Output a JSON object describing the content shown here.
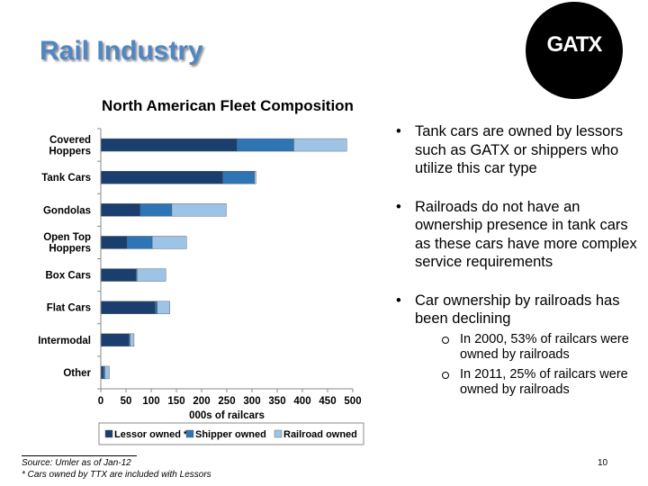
{
  "slide": {
    "title": "Rail Industry",
    "logo_text": "GATX",
    "page_number": "10"
  },
  "chart_data": {
    "type": "bar",
    "orientation": "horizontal",
    "stacked": true,
    "title": "North American Fleet Composition",
    "xlabel": "000s of railcars",
    "ylabel": "",
    "xlim": [
      0,
      500
    ],
    "xticks": [
      "0",
      "50",
      "100",
      "150",
      "200",
      "250",
      "300",
      "350",
      "400",
      "450",
      "500"
    ],
    "categories": [
      "Covered Hoppers",
      "Tank Cars",
      "Gondolas",
      "Open Top Hoppers",
      "Box Cars",
      "Flat Cars",
      "Intermodal",
      "Other"
    ],
    "category_lines": [
      [
        "Covered",
        "Hoppers"
      ],
      [
        "Tank Cars"
      ],
      [
        "Gondolas"
      ],
      [
        "Open Top",
        "Hoppers"
      ],
      [
        "Box Cars"
      ],
      [
        "Flat Cars"
      ],
      [
        "Intermodal"
      ],
      [
        "Other"
      ]
    ],
    "series": [
      {
        "name": "Lessor owned *",
        "color": "#1a3f6f",
        "values": [
          270,
          242,
          78,
          52,
          70,
          108,
          56,
          5
        ]
      },
      {
        "name": "Shipper owned",
        "color": "#2e75b6",
        "values": [
          113,
          63,
          63,
          50,
          2,
          4,
          2,
          3
        ]
      },
      {
        "name": "Railroad owned",
        "color": "#9dc3e6",
        "values": [
          105,
          3,
          108,
          68,
          57,
          25,
          8,
          9
        ]
      }
    ],
    "grid": false,
    "legend_position": "bottom"
  },
  "bullets": [
    {
      "text": "Tank cars are owned by lessors such as GATX or shippers who utilize this car type",
      "subs": []
    },
    {
      "text": "Railroads do not have an ownership presence in tank cars as these cars have more complex service requirements",
      "subs": []
    },
    {
      "text": "Car ownership by railroads has been declining",
      "subs": [
        "In 2000, 53% of railcars were owned by railroads",
        "In 2011, 25% of railcars were owned by railroads"
      ]
    }
  ],
  "footnotes": {
    "source": "Source: Umler as of Jan-12",
    "ttx": "* Cars owned by TTX are included with Lessors"
  },
  "colors": {
    "title": "#4f86c6",
    "lessor": "#1a3f6f",
    "shipper": "#2e75b6",
    "railroad": "#9dc3e6"
  }
}
